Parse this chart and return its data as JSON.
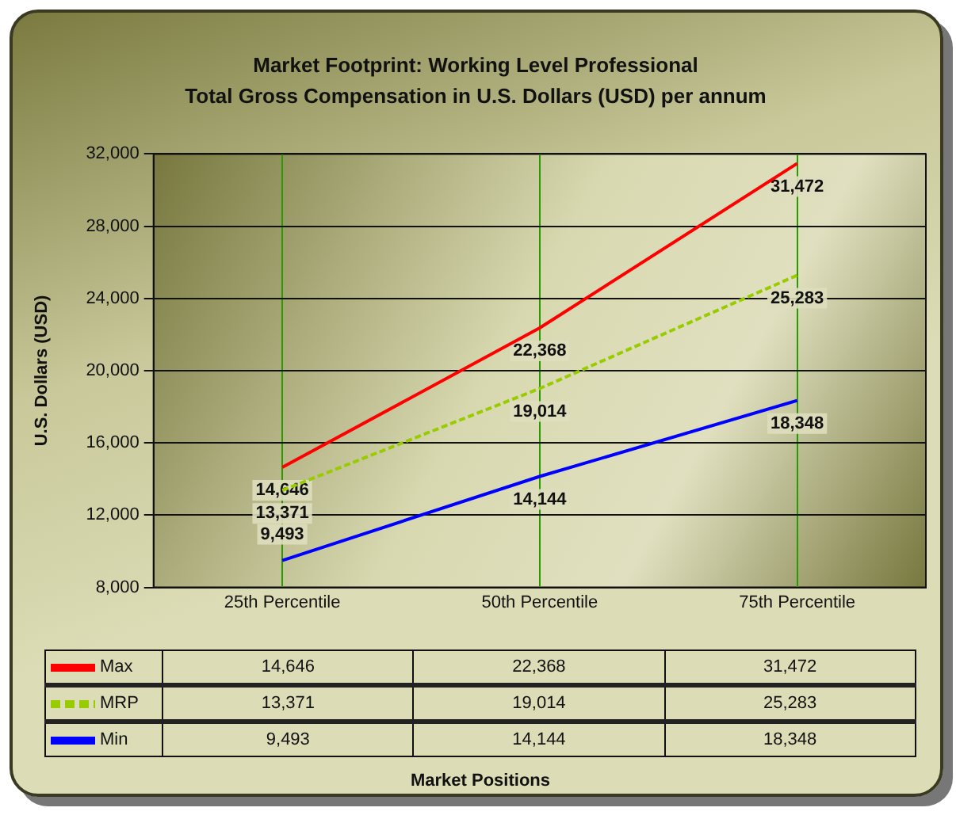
{
  "chart_data": {
    "type": "line",
    "title": "Market Footprint: Working Level Professional",
    "subtitle": "Total Gross Compensation in U.S. Dollars (USD) per annum",
    "ylabel": "U.S. Dollars (USD)",
    "categories": [
      "25th Percentile",
      "50th Percentile",
      "75th Percentile"
    ],
    "series": [
      {
        "name": "Max",
        "color": "#ff0000",
        "line_style": "solid",
        "values": [
          14646,
          22368,
          31472
        ],
        "value_labels": [
          "14,646",
          "22,368",
          "31,472"
        ]
      },
      {
        "name": "MRP",
        "color": "#99cc00",
        "line_style": "dashed",
        "values": [
          13371,
          19014,
          25283
        ],
        "value_labels": [
          "13,371",
          "19,014",
          "25,283"
        ]
      },
      {
        "name": "Min",
        "color": "#0000ff",
        "line_style": "solid",
        "values": [
          9493,
          14144,
          18348
        ],
        "value_labels": [
          "9,493",
          "14,144",
          "18,348"
        ]
      }
    ],
    "ylim": [
      8000,
      32000
    ],
    "yticks": [
      {
        "value": 8000,
        "label": "8,000"
      },
      {
        "value": 12000,
        "label": "12,000"
      },
      {
        "value": 16000,
        "label": "16,000"
      },
      {
        "value": 20000,
        "label": "20,000"
      },
      {
        "value": 24000,
        "label": "24,000"
      },
      {
        "value": 28000,
        "label": "28,000"
      },
      {
        "value": 32000,
        "label": "32,000"
      }
    ],
    "annotations": [
      "Market Positions"
    ],
    "grid": true,
    "legend": "bottom",
    "marker": "none"
  }
}
